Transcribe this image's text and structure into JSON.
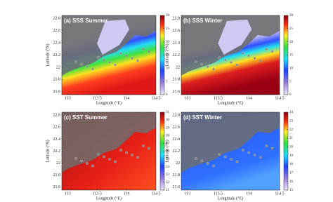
{
  "chart_data": [
    {
      "type": "map",
      "title": "(a) SSS Summer",
      "xlabel": "Longitude (°E)",
      "ylabel": "Latitude (°N)",
      "xlim": [
        112.9,
        114.5
      ],
      "xticks": [
        113,
        113.5,
        114,
        114.5
      ],
      "ylim": [
        21.55,
        22.85
      ],
      "yticks": [
        21.6,
        21.8,
        22,
        22.2,
        22.4,
        22.6,
        22.8
      ],
      "clim": [
        0,
        30
      ],
      "cticks": [
        0,
        5,
        10,
        15,
        20,
        25,
        30
      ]
    },
    {
      "type": "map",
      "title": "(b) SSS Winter",
      "xlabel": "Longitude (°E)",
      "ylabel": "Latitude (°N)",
      "xlim": [
        112.9,
        114.5
      ],
      "xticks": [
        113,
        113.5,
        114,
        114.5
      ],
      "ylim": [
        21.55,
        22.85
      ],
      "yticks": [
        21.6,
        21.8,
        22,
        22.2,
        22.4,
        22.6,
        22.8
      ],
      "clim": [
        0,
        30
      ],
      "cticks": [
        0,
        5,
        10,
        15,
        20,
        25,
        30
      ]
    },
    {
      "type": "map",
      "title": "(c) SST Summer",
      "xlabel": "Longitude (°E)",
      "ylabel": "Latitude (°N)",
      "xlim": [
        112.9,
        114.5
      ],
      "xticks": [
        113,
        113.5,
        114,
        114.5
      ],
      "ylim": [
        21.55,
        22.85
      ],
      "yticks": [
        21.6,
        21.8,
        22,
        22.2,
        22.4,
        22.6,
        22.8
      ],
      "clim": [
        21,
        31
      ],
      "cticks": [
        21,
        22,
        23,
        24,
        25,
        26,
        27,
        28,
        29,
        30,
        31
      ]
    },
    {
      "type": "map",
      "title": "(d) SST Winter",
      "xlabel": "Longitude (°E)",
      "ylabel": "Latitude (°N)",
      "xlim": [
        112.9,
        114.5
      ],
      "xticks": [
        113,
        113.5,
        114,
        114.5
      ],
      "ylim": [
        21.55,
        22.85
      ],
      "yticks": [
        21.6,
        21.8,
        22,
        22.2,
        22.4,
        22.6,
        22.8
      ],
      "clim": [
        15,
        24
      ],
      "cticks": [
        15,
        16,
        17,
        18,
        19,
        20,
        21,
        22,
        23,
        24
      ]
    }
  ]
}
